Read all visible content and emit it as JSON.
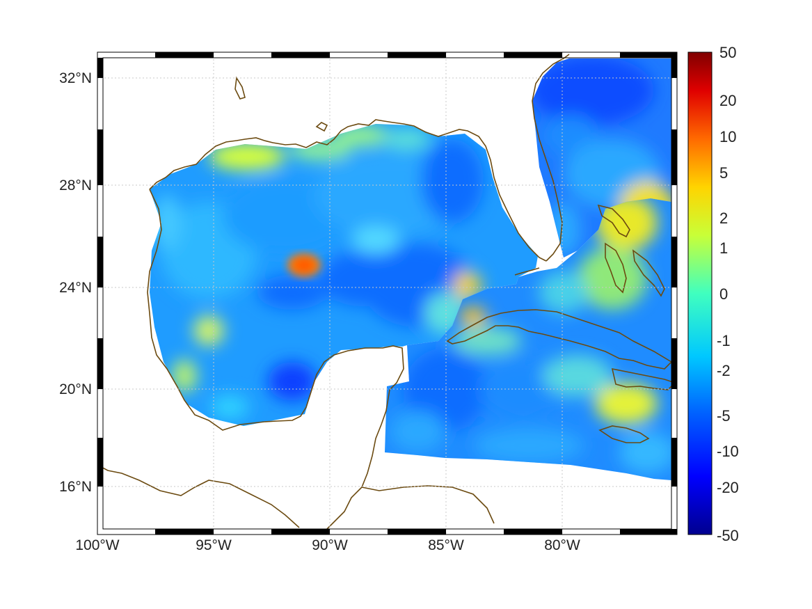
{
  "map": {
    "type": "heatmap",
    "projection": "lat-lon",
    "extent": {
      "lon": [
        -100,
        -75
      ],
      "lat": [
        14.3,
        33
      ]
    },
    "grid": "dotted",
    "coastline_color": "#6b4a10",
    "lon_ticks": [
      {
        "value": -100,
        "label": "100°W"
      },
      {
        "value": -95,
        "label": "95°W"
      },
      {
        "value": -90,
        "label": "90°W"
      },
      {
        "value": -85,
        "label": "85°W"
      },
      {
        "value": -80,
        "label": "80°W"
      }
    ],
    "lat_ticks": [
      {
        "value": 32,
        "label": "32°N"
      },
      {
        "value": 28,
        "label": "28°N"
      },
      {
        "value": 24,
        "label": "24°N"
      },
      {
        "value": 20,
        "label": "20°N"
      },
      {
        "value": 16,
        "label": "16°N"
      }
    ]
  },
  "colorbar": {
    "colormap": "jet",
    "labels": [
      {
        "value": 50,
        "label": "50"
      },
      {
        "value": 20,
        "label": "20"
      },
      {
        "value": 10,
        "label": "10"
      },
      {
        "value": 5,
        "label": "5"
      },
      {
        "value": 2,
        "label": "2"
      },
      {
        "value": 1,
        "label": "1"
      },
      {
        "value": 0,
        "label": "0"
      },
      {
        "value": -1,
        "label": "-1"
      },
      {
        "value": -2,
        "label": "-2"
      },
      {
        "value": -5,
        "label": "-5"
      },
      {
        "value": -10,
        "label": "-10"
      },
      {
        "value": -20,
        "label": "-20"
      },
      {
        "value": -50,
        "label": "-50"
      }
    ]
  }
}
